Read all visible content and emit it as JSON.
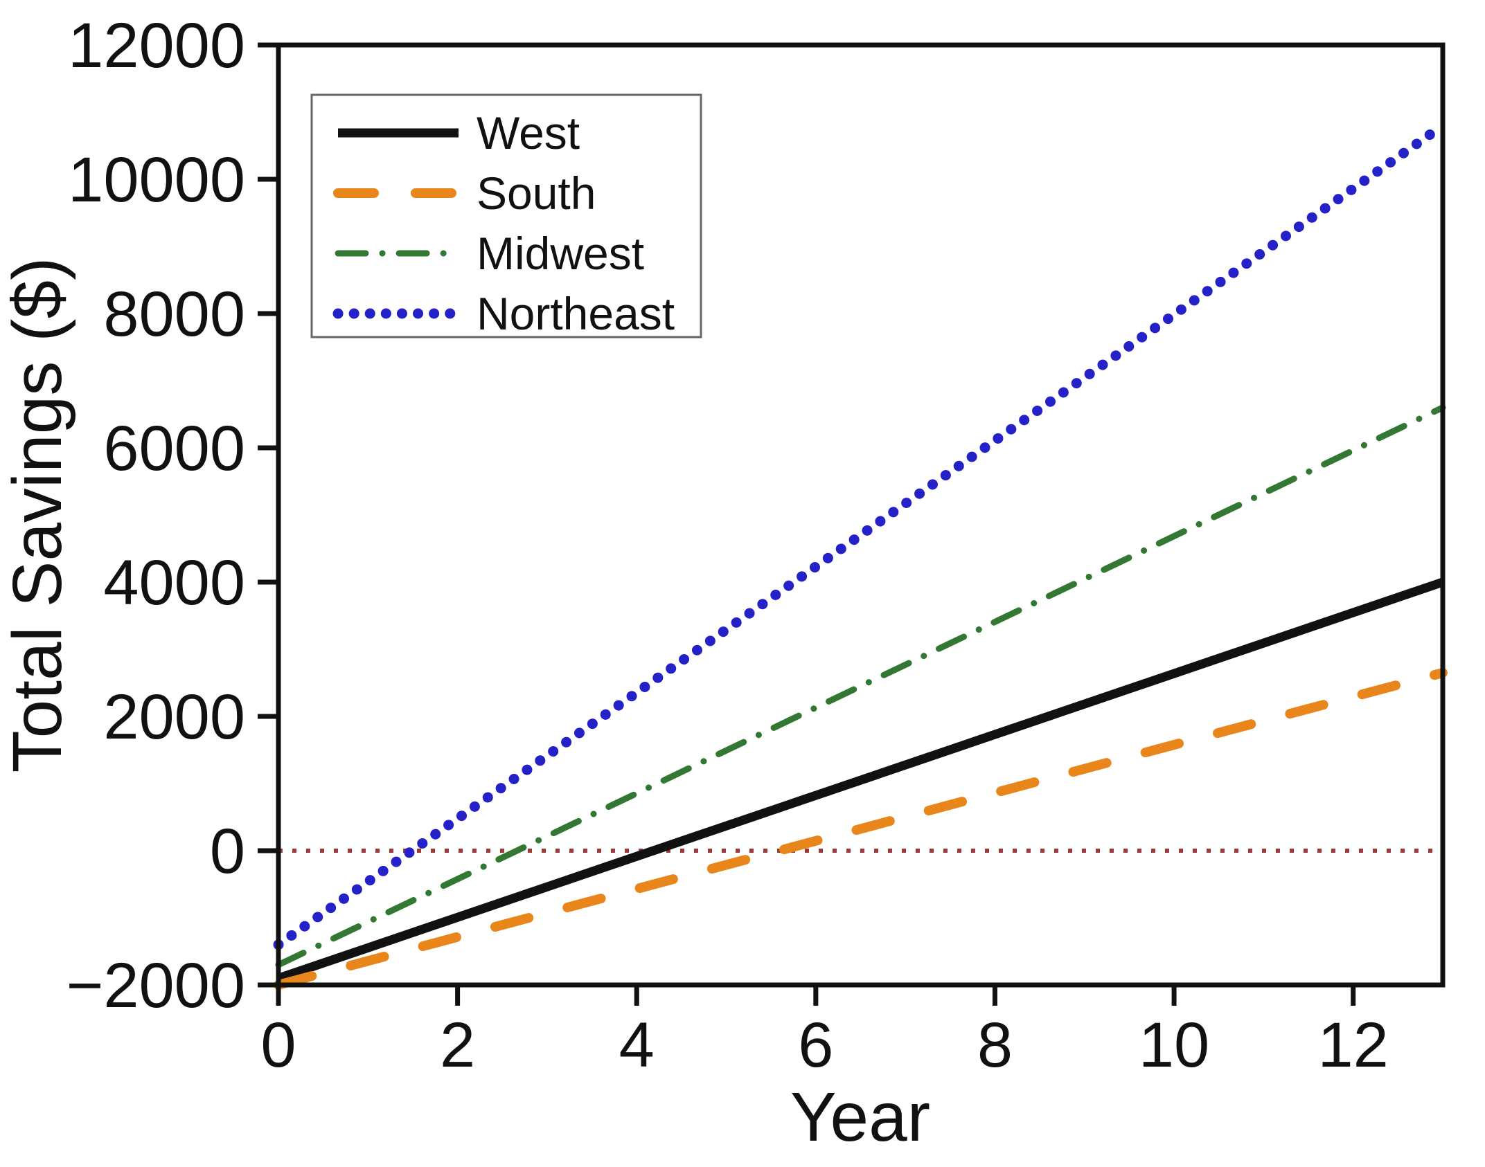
{
  "chart_data": {
    "type": "line",
    "title": "",
    "xlabel": "Year",
    "ylabel": "Total Savings ($)",
    "xlim": [
      0,
      13
    ],
    "ylim": [
      -2000,
      12000
    ],
    "x_ticks": [
      0,
      2,
      4,
      6,
      8,
      10,
      12
    ],
    "y_ticks": [
      -2000,
      0,
      2000,
      4000,
      6000,
      8000,
      10000,
      12000
    ],
    "grid": false,
    "legend_position": "top-left",
    "axis_color": "#111111",
    "series": [
      {
        "name": "West",
        "color": "#111111",
        "style": "solid",
        "x": [
          0,
          13
        ],
        "values": [
          -1900,
          4000
        ],
        "zero_crossing_year": 4.2
      },
      {
        "name": "South",
        "color": "#E8861C",
        "style": "dashed",
        "x": [
          0,
          13
        ],
        "values": [
          -2000,
          2650
        ],
        "zero_crossing_year": 5.6
      },
      {
        "name": "Midwest",
        "color": "#327832",
        "style": "dashdot",
        "x": [
          0,
          13
        ],
        "values": [
          -1700,
          6600
        ],
        "zero_crossing_year": 2.7
      },
      {
        "name": "Northeast",
        "color": "#2521C8",
        "style": "dotted",
        "x": [
          0,
          13
        ],
        "values": [
          -1400,
          10800
        ],
        "zero_crossing_year": 1.5
      }
    ],
    "reference_line": {
      "y": 0,
      "color": "#9C3A3A",
      "style": "dotted"
    }
  }
}
